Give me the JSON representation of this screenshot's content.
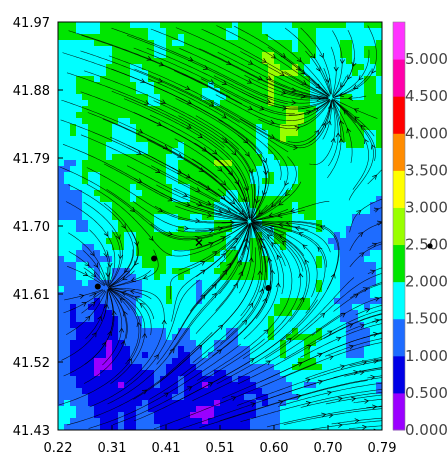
{
  "chart_data": {
    "type": "heatmap",
    "title": "",
    "xlabel": "",
    "ylabel": "",
    "x_ticks": [
      "0.22",
      "0.31",
      "0.41",
      "0.51",
      "0.60",
      "0.70",
      "0.79"
    ],
    "y_ticks": [
      "41.97",
      "41.88",
      "41.79",
      "41.70",
      "41.61",
      "41.52",
      "41.43"
    ],
    "xlim": [
      0.22,
      0.79
    ],
    "ylim": [
      41.43,
      41.97
    ],
    "grid": false,
    "overlay": "streamlines",
    "colorbar": {
      "levels": [
        "0.000",
        "0.500",
        "1.000",
        "1.500",
        "2.000",
        "2.500",
        "3.000",
        "3.500",
        "4.000",
        "4.500",
        "5.000"
      ],
      "colors": [
        "#9a00ff",
        "#0000e6",
        "#1e6cff",
        "#00ffff",
        "#00e600",
        "#99ff00",
        "#ffff00",
        "#ff8c00",
        "#ff0000",
        "#ff00aa",
        "#ff33ff"
      ],
      "range": [
        0,
        5.5
      ]
    },
    "markers": [
      {
        "x": 0.389,
        "y": 41.657,
        "shape": "dot"
      },
      {
        "x": 0.59,
        "y": 41.618,
        "shape": "dot"
      },
      {
        "x": 0.29,
        "y": 41.62,
        "shape": "dot"
      },
      {
        "x": 0.468,
        "y": 41.678,
        "shape": "cross"
      }
    ],
    "convergence_points": [
      {
        "x": 0.305,
        "y": 41.618
      },
      {
        "x": 0.557,
        "y": 41.706
      },
      {
        "x": 0.7,
        "y": 41.87
      }
    ]
  }
}
